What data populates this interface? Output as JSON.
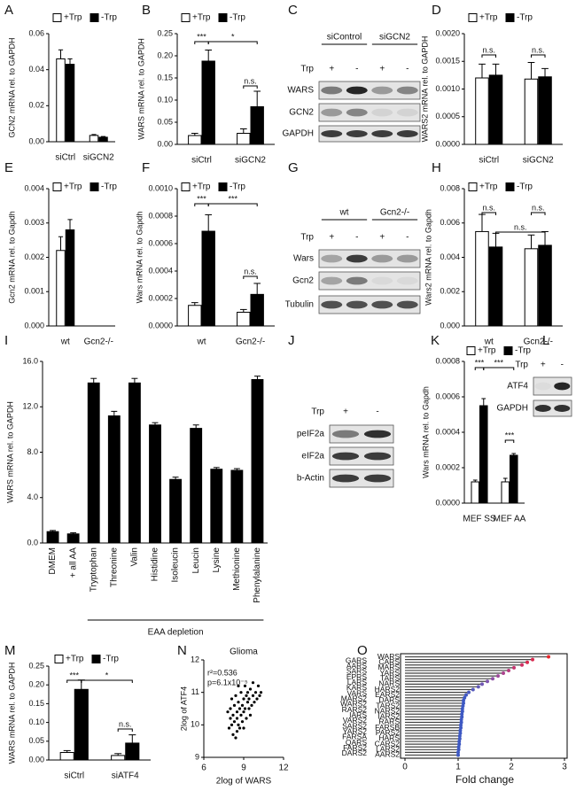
{
  "chart_data": [
    {
      "label": "A",
      "type": "bar",
      "ylabel": "GCN2 mRNA rel. to GAPDH",
      "categories": [
        "siCtrl",
        "siGCN2"
      ],
      "series": [
        {
          "name": "+Trp",
          "color": "#ffffff",
          "values": [
            0.046,
            0.0035
          ],
          "errors": [
            0.005,
            0.0005
          ]
        },
        {
          "name": "-Trp",
          "color": "#000000",
          "values": [
            0.043,
            0.0025
          ],
          "errors": [
            0.003,
            0.0004
          ]
        }
      ],
      "ylim": [
        0,
        0.06
      ],
      "yticks": [
        {
          "value": 0,
          "label": "0.00"
        },
        {
          "value": 0.02,
          "label": "0.02"
        },
        {
          "value": 0.04,
          "label": "0.04"
        },
        {
          "value": 0.06,
          "label": "0.06"
        }
      ]
    },
    {
      "label": "B",
      "type": "bar",
      "ylabel": "WARS mRNA rel. to GAPDH",
      "categories": [
        "siCtrl",
        "siGCN2"
      ],
      "series": [
        {
          "name": "+Trp",
          "color": "#ffffff",
          "values": [
            0.02,
            0.025
          ],
          "errors": [
            0.005,
            0.01
          ]
        },
        {
          "name": "-Trp",
          "color": "#000000",
          "values": [
            0.188,
            0.085
          ],
          "errors": [
            0.025,
            0.035
          ]
        }
      ],
      "annotations": [
        "***",
        "*",
        "n.s."
      ],
      "ylim": [
        0,
        0.25
      ],
      "yticks": [
        {
          "value": 0,
          "label": "0.00"
        },
        {
          "value": 0.05,
          "label": "0.05"
        },
        {
          "value": 0.1,
          "label": "0.10"
        },
        {
          "value": 0.15,
          "label": "0.15"
        },
        {
          "value": 0.2,
          "label": "0.20"
        },
        {
          "value": 0.25,
          "label": "0.25"
        }
      ]
    },
    {
      "label": "D",
      "type": "bar",
      "ylabel": "WARS2 mRNA rel. to GAPDH",
      "categories": [
        "siCtrl",
        "siGCN2"
      ],
      "series": [
        {
          "name": "+Trp",
          "color": "#ffffff",
          "values": [
            0.0012,
            0.00118
          ],
          "errors": [
            0.00025,
            0.0003
          ]
        },
        {
          "name": "-Trp",
          "color": "#000000",
          "values": [
            0.00125,
            0.00122
          ],
          "errors": [
            0.0002,
            0.00015
          ]
        }
      ],
      "annotations": [
        "n.s.",
        "n.s."
      ],
      "ylim": [
        0,
        0.002
      ],
      "yticks": [
        {
          "value": 0,
          "label": "0.0000"
        },
        {
          "value": 0.0005,
          "label": "0.0005"
        },
        {
          "value": 0.001,
          "label": "0.0010"
        },
        {
          "value": 0.0015,
          "label": "0.0015"
        },
        {
          "value": 0.002,
          "label": "0.0020"
        }
      ]
    },
    {
      "label": "E",
      "type": "bar",
      "ylabel": "Gcn2 mRNA rel. to Gapdh",
      "categories": [
        "wt",
        "Gcn2-/-"
      ],
      "series": [
        {
          "name": "+Trp",
          "color": "#ffffff",
          "values": [
            0.0022,
            0
          ],
          "errors": [
            0.0004,
            0
          ]
        },
        {
          "name": "-Trp",
          "color": "#000000",
          "values": [
            0.0028,
            0
          ],
          "errors": [
            0.0003,
            0
          ]
        }
      ],
      "ylim": [
        0,
        0.004
      ],
      "yticks": [
        {
          "value": 0,
          "label": "0.000"
        },
        {
          "value": 0.001,
          "label": "0.001"
        },
        {
          "value": 0.002,
          "label": "0.002"
        },
        {
          "value": 0.003,
          "label": "0.003"
        },
        {
          "value": 0.004,
          "label": "0.004"
        }
      ]
    },
    {
      "label": "F",
      "type": "bar",
      "ylabel": "Wars mRNA rel. to Gapdh",
      "categories": [
        "wt",
        "Gcn2-/-"
      ],
      "series": [
        {
          "name": "+Trp",
          "color": "#ffffff",
          "values": [
            0.00015,
            0.0001
          ],
          "errors": [
            2e-05,
            2e-05
          ]
        },
        {
          "name": "-Trp",
          "color": "#000000",
          "values": [
            0.00069,
            0.00023
          ],
          "errors": [
            0.00012,
            8e-05
          ]
        }
      ],
      "annotations": [
        "***",
        "***",
        "n.s."
      ],
      "ylim": [
        0,
        0.001
      ],
      "yticks": [
        {
          "value": 0,
          "label": "0.0000"
        },
        {
          "value": 0.0002,
          "label": "0.0002"
        },
        {
          "value": 0.0004,
          "label": "0.0004"
        },
        {
          "value": 0.0006,
          "label": "0.0006"
        },
        {
          "value": 0.0008,
          "label": "0.0008"
        },
        {
          "value": 0.001,
          "label": "0.0010"
        }
      ]
    },
    {
      "label": "H",
      "type": "bar",
      "ylabel": "Wars2 mRNA rel. to Gapdh",
      "categories": [
        "wt",
        "Gcn2-/-"
      ],
      "series": [
        {
          "name": "+Trp",
          "color": "#ffffff",
          "values": [
            0.0055,
            0.0045
          ],
          "errors": [
            0.001,
            0.0008
          ]
        },
        {
          "name": "-Trp",
          "color": "#000000",
          "values": [
            0.0046,
            0.0047
          ],
          "errors": [
            0.0008,
            0.0008
          ]
        }
      ],
      "annotations": [
        "n.s.",
        "n.s.",
        "n.s."
      ],
      "ylim": [
        0,
        0.008
      ],
      "yticks": [
        {
          "value": 0,
          "label": "0.000"
        },
        {
          "value": 0.002,
          "label": "0.002"
        },
        {
          "value": 0.004,
          "label": "0.004"
        },
        {
          "value": 0.006,
          "label": "0.006"
        },
        {
          "value": 0.008,
          "label": "0.008"
        }
      ]
    },
    {
      "label": "I",
      "type": "bar",
      "ylabel": "WARS mRNA rel. to GAPDH",
      "categories": [
        "DMEM",
        "+ all AA",
        "Tryptophan",
        "Threonine",
        "Valin",
        "Histidine",
        "Isoleucin",
        "Leucin",
        "Lysine",
        "Methionine",
        "Phenylalanine"
      ],
      "values": [
        1.0,
        0.8,
        14.1,
        11.2,
        14.1,
        10.4,
        5.6,
        10.1,
        6.5,
        6.4,
        14.4
      ],
      "errors": [
        0.1,
        0.1,
        0.4,
        0.4,
        0.4,
        0.2,
        0.2,
        0.3,
        0.15,
        0.15,
        0.3
      ],
      "color": "#000000",
      "group_label": "EAA depletion",
      "ylim": [
        0,
        16
      ],
      "yticks": [
        {
          "value": 0,
          "label": "0.0"
        },
        {
          "value": 4,
          "label": "4.0"
        },
        {
          "value": 8,
          "label": "8.0"
        },
        {
          "value": 12,
          "label": "12.0"
        },
        {
          "value": 16,
          "label": "16.0"
        }
      ]
    },
    {
      "label": "K",
      "type": "bar",
      "ylabel": "Wars mRNA rel. to Gapdh",
      "categories": [
        "MEF SS",
        "MEF AA"
      ],
      "series": [
        {
          "name": "+Trp",
          "color": "#ffffff",
          "values": [
            0.00012,
            0.00012
          ],
          "errors": [
            1e-05,
            2e-05
          ]
        },
        {
          "name": "-Trp",
          "color": "#000000",
          "values": [
            0.00055,
            0.00027
          ],
          "errors": [
            4e-05,
            1e-05
          ]
        }
      ],
      "annotations": [
        "***",
        "***",
        "***"
      ],
      "ylim": [
        0,
        0.0008
      ],
      "yticks": [
        {
          "value": 0,
          "label": "0.0000"
        },
        {
          "value": 0.0002,
          "label": "0.0002"
        },
        {
          "value": 0.0004,
          "label": "0.0004"
        },
        {
          "value": 0.0006,
          "label": "0.0006"
        },
        {
          "value": 0.0008,
          "label": "0.0008"
        }
      ]
    },
    {
      "label": "M",
      "type": "bar",
      "ylabel": "WARS mRNA rel. to GAPDH",
      "categories": [
        "siCtrl",
        "siATF4"
      ],
      "series": [
        {
          "name": "+Trp",
          "color": "#ffffff",
          "values": [
            0.02,
            0.012
          ],
          "errors": [
            0.005,
            0.005
          ]
        },
        {
          "name": "-Trp",
          "color": "#000000",
          "values": [
            0.188,
            0.045
          ],
          "errors": [
            0.025,
            0.022
          ]
        }
      ],
      "annotations": [
        "***",
        "*",
        "n.s."
      ],
      "ylim": [
        0,
        0.25
      ],
      "yticks": [
        {
          "value": 0,
          "label": "0.00"
        },
        {
          "value": 0.05,
          "label": "0.05"
        },
        {
          "value": 0.1,
          "label": "0.10"
        },
        {
          "value": 0.15,
          "label": "0.15"
        },
        {
          "value": 0.2,
          "label": "0.20"
        },
        {
          "value": 0.25,
          "label": "0.25"
        }
      ]
    },
    {
      "label": "N",
      "type": "scatter",
      "title": "Glioma",
      "xlabel": "2log of WARS",
      "ylabel": "2log of ATF4",
      "annotations": [
        "r²=0.536",
        "p=6.1x10⁻⁵"
      ],
      "color": "#000000",
      "x": [
        7.8,
        7.9,
        8.0,
        8.1,
        8.1,
        8.2,
        8.2,
        8.3,
        8.3,
        8.4,
        8.4,
        8.5,
        8.5,
        8.5,
        8.6,
        8.6,
        8.7,
        8.7,
        8.8,
        8.8,
        8.9,
        8.9,
        9.0,
        9.0,
        9.0,
        9.1,
        9.1,
        9.2,
        9.2,
        9.3,
        9.3,
        9.4,
        9.4,
        9.5,
        9.5,
        9.6,
        9.7,
        9.7,
        9.8,
        9.9,
        10.0,
        10.1,
        10.2,
        10.3,
        8.0,
        8.6
      ],
      "y": [
        10.4,
        9.9,
        10.5,
        10.0,
        10.8,
        10.3,
        9.7,
        10.6,
        10.1,
        10.9,
        9.6,
        10.4,
        10.2,
        9.8,
        10.7,
        10.0,
        10.5,
        9.9,
        11.0,
        10.3,
        10.6,
        10.1,
        10.8,
        10.4,
        9.9,
        11.2,
        10.5,
        10.9,
        10.2,
        10.7,
        11.0,
        10.5,
        10.8,
        11.1,
        10.3,
        10.6,
        10.9,
        11.3,
        10.7,
        11.0,
        10.8,
        11.2,
        10.9,
        11.0,
        10.2,
        11.2
      ],
      "xlim": [
        6,
        12
      ],
      "xticks": [
        6,
        9,
        12
      ],
      "ylim": [
        9,
        12
      ],
      "yticks": [
        9,
        10,
        11,
        12
      ]
    },
    {
      "label": "O",
      "type": "lollipop",
      "xlabel": "Fold change",
      "highlight_color": "#e8262a",
      "stem_color": "#444444",
      "categories": [
        "WARS",
        "GARS",
        "CARS",
        "AARS",
        "MARS",
        "SARS",
        "YARS",
        "EPRS",
        "TARS",
        "LARS",
        "NARS",
        "KARS",
        "HARS2",
        "VARS",
        "EARS2",
        "MARS2",
        "DARS",
        "WARS2",
        "TARS2",
        "RARS2",
        "NARS2",
        "IARS",
        "IARS2",
        "VARS2",
        "RARS",
        "SARS2",
        "FARSB",
        "YARS2",
        "PARS2",
        "FARSA",
        "HARS",
        "QARS",
        "CARS2",
        "FARS2",
        "LARS2",
        "DARS2",
        "AARS2"
      ],
      "values": [
        2.7,
        2.4,
        2.3,
        2.2,
        2.05,
        1.95,
        1.85,
        1.75,
        1.65,
        1.55,
        1.45,
        1.38,
        1.28,
        1.2,
        1.15,
        1.12,
        1.1,
        1.1,
        1.09,
        1.08,
        1.08,
        1.07,
        1.07,
        1.06,
        1.06,
        1.05,
        1.05,
        1.04,
        1.04,
        1.03,
        1.03,
        1.02,
        1.02,
        1.01,
        1.01,
        1.0,
        1.0
      ],
      "colors": [
        "#e8262a",
        "#d8284e",
        "#d8284e",
        "#cf2f62",
        "#c63470",
        "#b93c80",
        "#ac428e",
        "#9d4a9c",
        "#8e4fa6",
        "#7f54ae",
        "#7057b4",
        "#6259b8",
        "#5559bc",
        "#4a59bf",
        "#4258c1",
        "#3d58c3",
        "#3d58c3",
        "#3d58c3",
        "#3d58c3",
        "#3d58c3",
        "#3d58c3",
        "#3d58c3",
        "#3d58c3",
        "#3d58c3",
        "#3d58c3",
        "#3d58c3",
        "#3d58c3",
        "#3d58c3",
        "#3d58c3",
        "#3d58c3",
        "#3d58c3",
        "#3d58c3",
        "#3d58c3",
        "#3d58c3",
        "#3d58c3",
        "#3d58c3",
        "#3d58c3"
      ],
      "xlim": [
        0,
        3
      ],
      "xticks": [
        0,
        1,
        2,
        3
      ]
    }
  ],
  "blots": [
    {
      "label": "C",
      "groups": [
        "siControl",
        "siGCN2"
      ],
      "condition": "Trp",
      "lanes": [
        "+",
        "-",
        "+",
        "-"
      ],
      "rows": [
        "WARS",
        "GCN2",
        "GAPDH"
      ]
    },
    {
      "label": "G",
      "groups": [
        "wt",
        "Gcn2-/-"
      ],
      "condition": "Trp",
      "lanes": [
        "+",
        "-",
        "+",
        "-"
      ],
      "rows": [
        "Wars",
        "Gcn2",
        "Tubulin"
      ]
    },
    {
      "label": "J",
      "condition": "Trp",
      "lanes": [
        "+",
        "-"
      ],
      "rows": [
        "peIF2a",
        "eIF2a",
        "b-Actin"
      ]
    },
    {
      "label": "L",
      "condition": "Trp",
      "lanes": [
        "+",
        "-"
      ],
      "rows": [
        "ATF4",
        "GAPDH"
      ]
    }
  ]
}
